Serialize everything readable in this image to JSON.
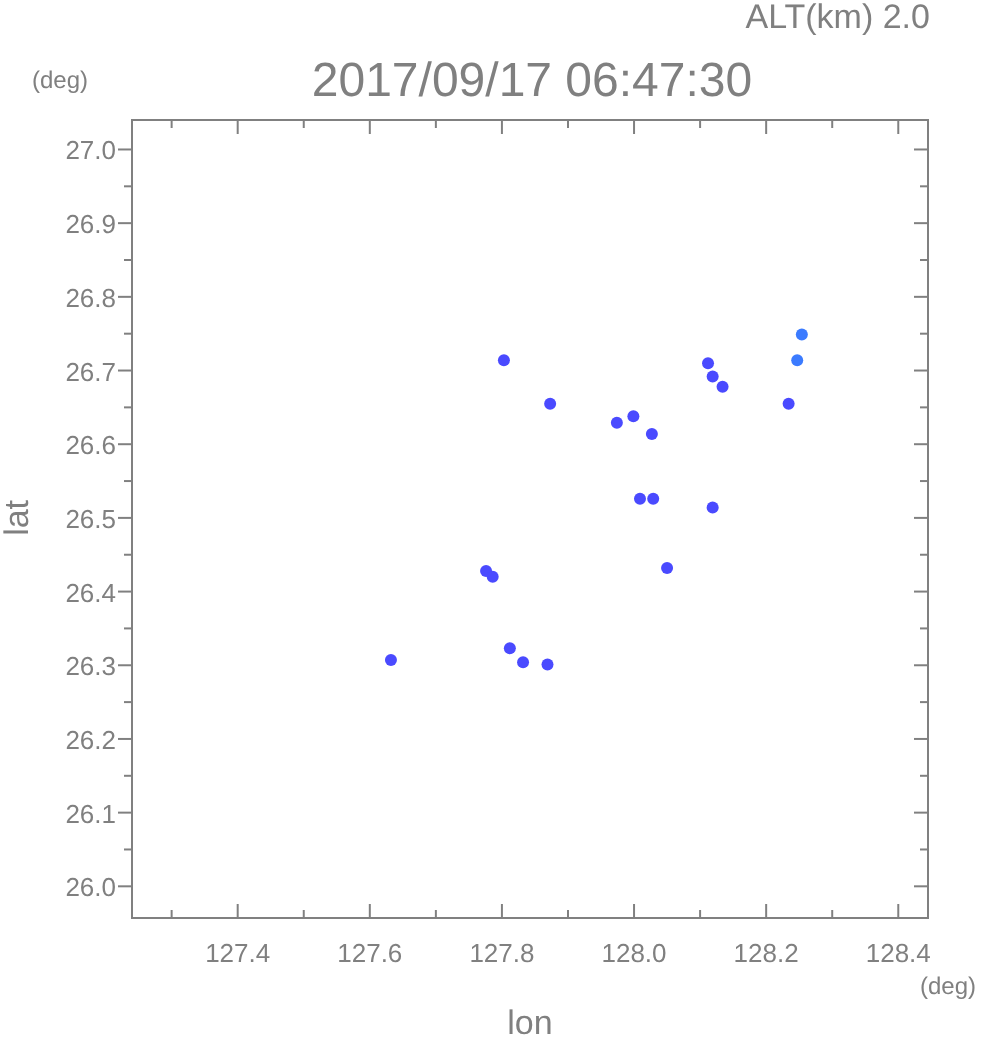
{
  "chart_data": {
    "type": "scatter",
    "title": "2017/09/17 06:47:30",
    "subtitle": "ALT(km) 2.0",
    "xlabel": "lon",
    "ylabel": "lat",
    "annotations": [
      "(deg)",
      "(deg)"
    ],
    "x": [
      127.803,
      127.873,
      127.974,
      127.999,
      128.027,
      128.112,
      128.119,
      128.134,
      128.254,
      128.247,
      128.234,
      128.029,
      128.009,
      128.119,
      127.776,
      127.786,
      128.05,
      127.812,
      127.832,
      127.869,
      127.632
    ],
    "values": [
      26.714,
      26.655,
      26.629,
      26.638,
      26.614,
      26.71,
      26.692,
      26.678,
      26.749,
      26.714,
      26.655,
      26.526,
      26.526,
      26.514,
      26.428,
      26.42,
      26.432,
      26.323,
      26.304,
      26.301,
      26.307
    ],
    "colors": [
      "#4a4aff",
      "#4a4aff",
      "#4a4aff",
      "#4a4aff",
      "#4a4aff",
      "#4a4aff",
      "#4a4aff",
      "#4a4aff",
      "#3b7bff",
      "#3b7bff",
      "#4a4aff",
      "#4a4aff",
      "#4a4aff",
      "#4a4aff",
      "#4a4aff",
      "#4a4aff",
      "#4a4aff",
      "#4a4aff",
      "#4a4aff",
      "#4a4aff",
      "#4a4aff"
    ],
    "marker": "circle",
    "xlim": [
      127.24,
      128.445
    ],
    "ylim": [
      25.957,
      27.04
    ],
    "xticks": [
      {
        "value": 127.3,
        "label": null
      },
      127.4,
      {
        "value": 127.5,
        "label": null
      },
      127.6,
      {
        "value": 127.7,
        "label": null
      },
      127.8,
      {
        "value": 127.9,
        "label": null
      },
      {
        "value": 128,
        "label": "128.0"
      },
      {
        "value": 128.1,
        "label": null
      },
      128.2,
      {
        "value": 128.3,
        "label": null
      },
      128.4
    ],
    "yticks": [
      {
        "value": 26,
        "label": "26.0"
      },
      {
        "value": 26.05,
        "label": null
      },
      26.1,
      {
        "value": 26.15,
        "label": null
      },
      26.2,
      {
        "value": 26.25,
        "label": null
      },
      26.3,
      {
        "value": 26.35,
        "label": null
      },
      26.4,
      {
        "value": 26.45,
        "label": null
      },
      26.5,
      {
        "value": 26.55,
        "label": null
      },
      26.6,
      {
        "value": 26.65,
        "label": null
      },
      26.7,
      {
        "value": 26.75,
        "label": null
      },
      26.8,
      {
        "value": 26.85,
        "label": null
      },
      26.9,
      {
        "value": 26.95,
        "label": null
      },
      {
        "value": 27,
        "label": "27.0"
      }
    ],
    "grid": false
  }
}
